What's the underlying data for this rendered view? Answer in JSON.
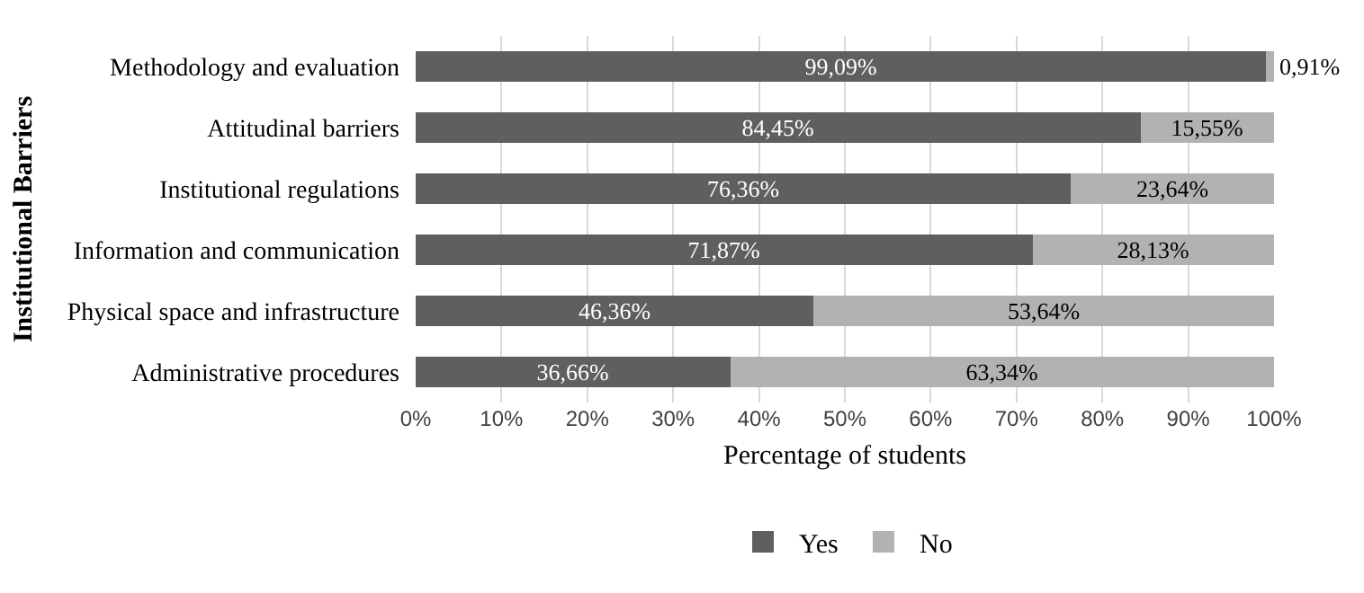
{
  "chart_data": {
    "type": "bar",
    "orientation": "horizontal",
    "stacked": true,
    "categories": [
      "Methodology and evaluation",
      "Attitudinal barriers",
      "Institutional regulations",
      "Information and communication",
      "Physical space and infrastructure",
      "Administrative procedures"
    ],
    "series": [
      {
        "name": "Yes",
        "color": "#5f5f5f",
        "values": [
          99.09,
          84.45,
          76.36,
          71.87,
          46.36,
          36.66
        ],
        "value_labels": [
          "99,09%",
          "84,45%",
          "76,36%",
          "71,87%",
          "46,36%",
          "36,66%"
        ]
      },
      {
        "name": "No",
        "color": "#b2b2b2",
        "values": [
          0.91,
          15.55,
          23.64,
          28.13,
          53.64,
          63.34
        ],
        "value_labels": [
          "0,91%",
          "15,55%",
          "23,64%",
          "28,13%",
          "53,64%",
          "63,34%"
        ]
      }
    ],
    "xlabel": "Percentage of students",
    "ylabel": "Institutional Barriers",
    "xlim": [
      0,
      100
    ],
    "xticks": [
      {
        "value": 0,
        "label": "0%"
      },
      {
        "value": 10,
        "label": "10%"
      },
      {
        "value": 20,
        "label": "20%"
      },
      {
        "value": 30,
        "label": "30%"
      },
      {
        "value": 40,
        "label": "40%"
      },
      {
        "value": 50,
        "label": "50%"
      },
      {
        "value": 60,
        "label": "60%"
      },
      {
        "value": 70,
        "label": "70%"
      },
      {
        "value": 80,
        "label": "80%"
      },
      {
        "value": 90,
        "label": "90%"
      },
      {
        "value": 100,
        "label": "100%"
      }
    ],
    "grid": "x",
    "legend": "bottom"
  }
}
